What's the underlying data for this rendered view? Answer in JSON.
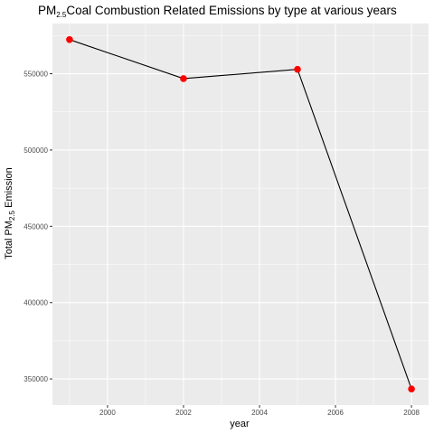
{
  "chart_data": {
    "type": "line",
    "title": {
      "prefix": "PM",
      "subscript": "2.5",
      "rest": "Coal Combustion Related Emissions by type at various years"
    },
    "xlabel": "year",
    "ylabel": {
      "prefix": "Total PM",
      "subscript": "2.5",
      "rest": " Emission"
    },
    "x": [
      1999,
      2002,
      2005,
      2008
    ],
    "series": [
      {
        "values": [
          572346,
          546789,
          552881,
          343432
        ]
      }
    ],
    "xlim": [
      1998.55,
      2008.45
    ],
    "ylim": [
      332886,
      582892
    ],
    "x_ticks": [
      2000,
      2002,
      2004,
      2006,
      2008
    ],
    "x_tick_labels": [
      "2000",
      "2002",
      "2004",
      "2006",
      "2008"
    ],
    "y_ticks": [
      350000,
      400000,
      450000,
      500000,
      550000
    ],
    "y_tick_labels": [
      "350000",
      "400000",
      "450000",
      "500000",
      "550000"
    ],
    "grid": true,
    "line_color": "#000000",
    "point_color": "#ff0000",
    "panel_color": "#ebebeb",
    "grid_color": "#ffffff"
  }
}
